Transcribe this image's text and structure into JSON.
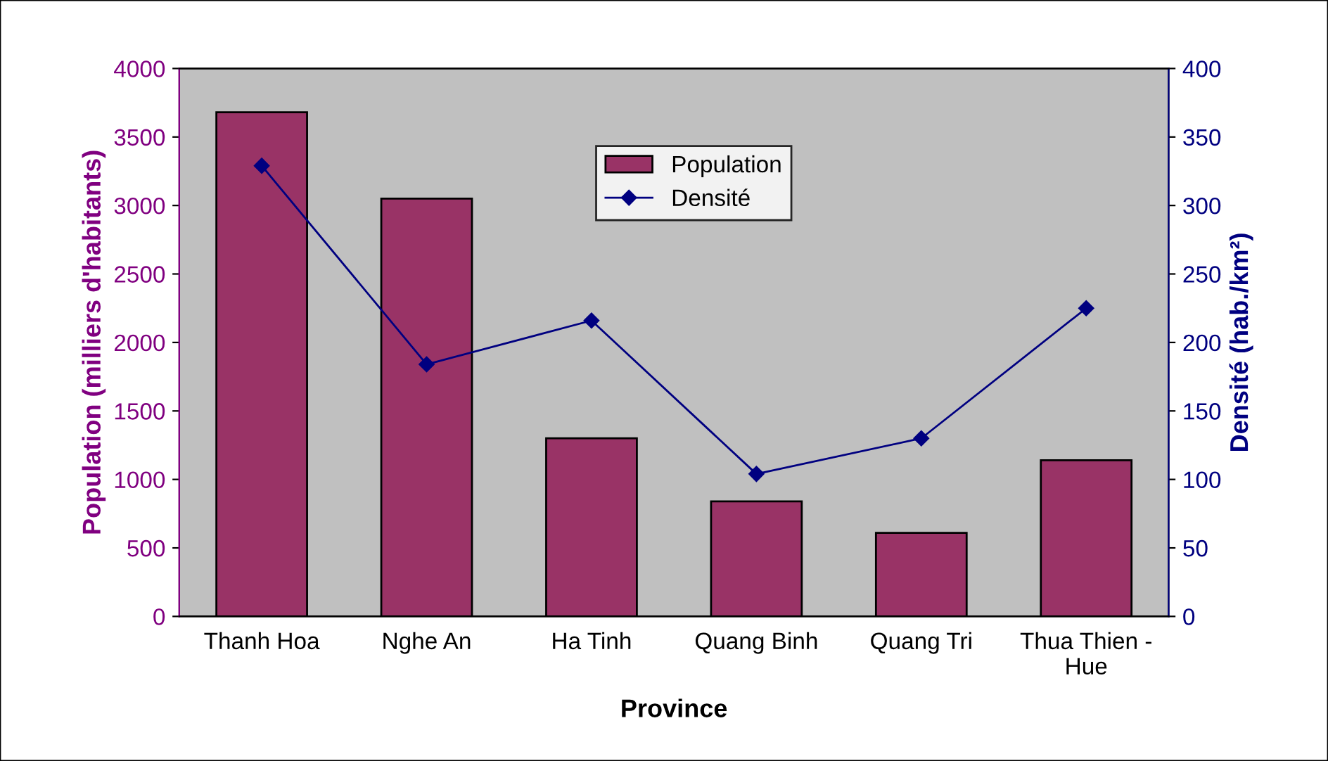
{
  "chart_data": {
    "type": "bar",
    "xlabel": "Province",
    "ylabel": "Population (milliers d'habitants)",
    "y2label": "Densité (hab./km²)",
    "categories": [
      "Thanh Hoa",
      "Nghe An",
      "Ha Tinh",
      "Quang Binh",
      "Quang Tri",
      "Thua Thien -\nHue"
    ],
    "series": [
      {
        "name": "Population",
        "color": "#993366",
        "values": [
          3680,
          3050,
          1300,
          840,
          610,
          1140
        ]
      },
      {
        "name": "Densité",
        "type": "line",
        "axis": "y2",
        "color": "#000080",
        "marker": "diamond",
        "values": [
          329,
          184,
          216,
          104,
          130,
          225
        ]
      }
    ],
    "ylim": [
      0,
      4000
    ],
    "yticks": [
      0,
      500,
      1000,
      1500,
      2000,
      2500,
      3000,
      3500,
      4000
    ],
    "y2lim": [
      0,
      400
    ],
    "y2ticks": [
      0,
      50,
      100,
      150,
      200,
      250,
      300,
      350,
      400
    ],
    "grid": false,
    "legend": "top"
  }
}
